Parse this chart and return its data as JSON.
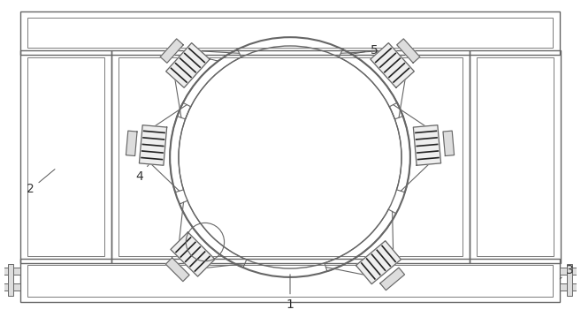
{
  "bg_color": "#ffffff",
  "line_color": "#666666",
  "dark_color": "#222222",
  "mid_gray": "#999999",
  "light_gray": "#cccccc",
  "frame_color": "#777777"
}
